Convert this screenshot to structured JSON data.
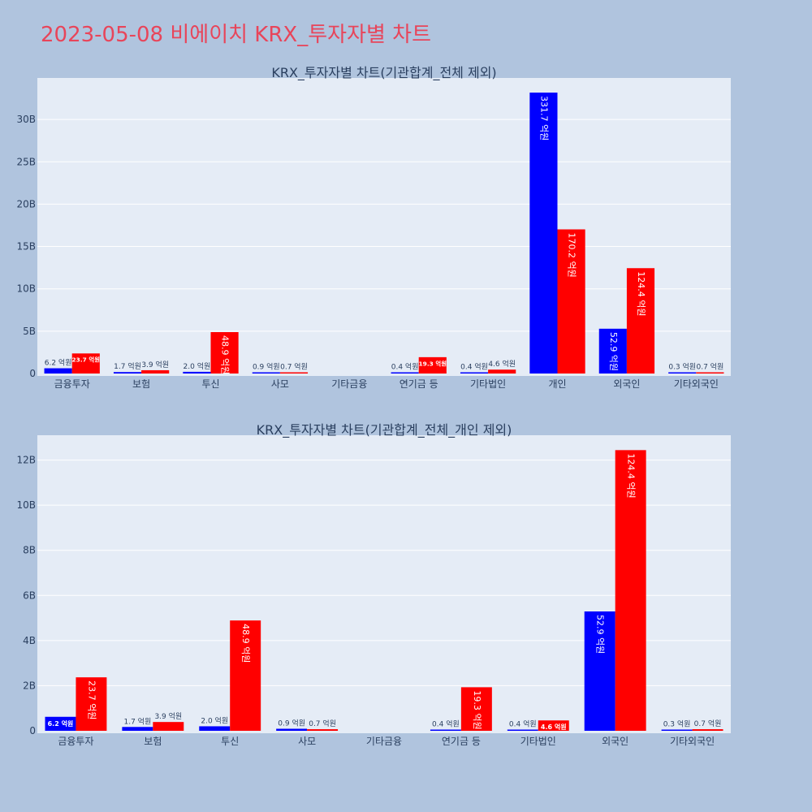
{
  "page": {
    "title": "2023-05-08 비에이치 KRX_투자자별 차트",
    "title_color": "#e8455a",
    "background": "#b0c4de"
  },
  "colors": {
    "buy": "#0000ff",
    "sell": "#ff0000",
    "plot_bg": "#e5ecf6"
  },
  "chart_data": [
    {
      "type": "bar",
      "title": "KRX_투자자별 차트(기관합계_전체 제외)",
      "categories": [
        "금융투자",
        "보험",
        "투신",
        "사모",
        "기타금융",
        "연기금 등",
        "기타법인",
        "개인",
        "외국인",
        "기타외국인"
      ],
      "series": [
        {
          "color": "#0000ff",
          "values": [
            0.62,
            0.17,
            0.2,
            0.09,
            0,
            0.04,
            0.04,
            33.17,
            5.29,
            0.03
          ],
          "labels": [
            "6.2 억원",
            "1.7 억원",
            "2.0 억원",
            "0.9 억원",
            "",
            "0.4 억원",
            "0.4 억원",
            "331.7 억원",
            "52.9 억원",
            "0.3 억원"
          ]
        },
        {
          "color": "#ff0000",
          "values": [
            2.37,
            0.39,
            4.89,
            0.07,
            0,
            1.93,
            0.46,
            17.02,
            12.44,
            0.07
          ],
          "labels": [
            "23.7 억원",
            "3.9 억원",
            "48.9 억원",
            "0.7 억원",
            "",
            "19.3 억원",
            "4.6 억원",
            "170.2 억원",
            "124.4 억원",
            "0.7 억원"
          ]
        }
      ],
      "yticks": [
        "0",
        "5B",
        "10B",
        "15B",
        "20B",
        "25B",
        "30B"
      ],
      "ytick_values": [
        0,
        5,
        10,
        15,
        20,
        25,
        30
      ],
      "ylim": [
        0,
        34.9
      ],
      "grid": true
    },
    {
      "type": "bar",
      "title": "KRX_투자자별 차트(기관합계_전체_개인 제외)",
      "categories": [
        "금융투자",
        "보험",
        "투신",
        "사모",
        "기타금융",
        "연기금 등",
        "기타법인",
        "외국인",
        "기타외국인"
      ],
      "series": [
        {
          "color": "#0000ff",
          "values": [
            0.62,
            0.17,
            0.2,
            0.09,
            0,
            0.04,
            0.04,
            5.29,
            0.03
          ],
          "labels": [
            "6.2 억원",
            "1.7 억원",
            "2.0 억원",
            "0.9 억원",
            "",
            "0.4 억원",
            "0.4 억원",
            "52.9 억원",
            "0.3 억원"
          ]
        },
        {
          "color": "#ff0000",
          "values": [
            2.37,
            0.39,
            4.89,
            0.07,
            0,
            1.93,
            0.46,
            12.44,
            0.07
          ],
          "labels": [
            "23.7 억원",
            "3.9 억원",
            "48.9 억원",
            "0.7 억원",
            "",
            "19.3 억원",
            "4.6 억원",
            "124.4 억원",
            "0.7 억원"
          ]
        }
      ],
      "yticks": [
        "0",
        "2B",
        "4B",
        "6B",
        "8B",
        "10B",
        "12B"
      ],
      "ytick_values": [
        0,
        2,
        4,
        6,
        8,
        10,
        12
      ],
      "ylim": [
        0,
        13.1
      ],
      "grid": true
    }
  ]
}
